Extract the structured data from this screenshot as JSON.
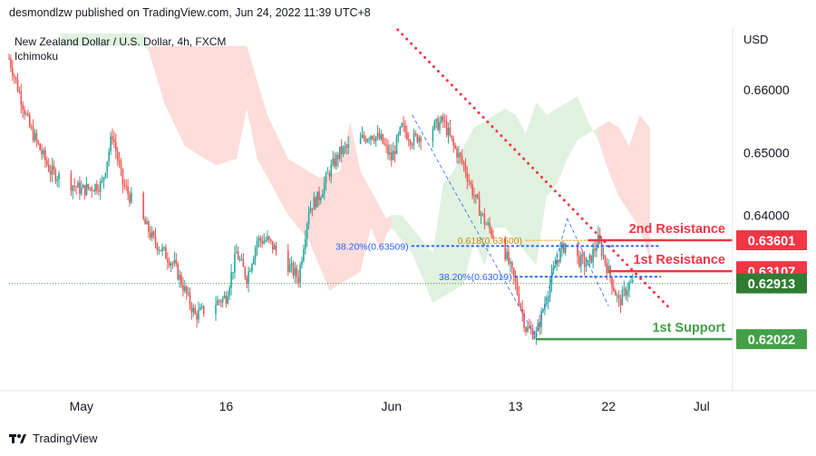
{
  "header": {
    "publisher": "desmondlzw published on TradingView.com, Jun 24, 2022 11:39 UTC+8"
  },
  "footer": {
    "logo_text": "TradingView",
    "logo_icon": "tradingview-logo-icon"
  },
  "chart_data": {
    "type": "candlestick",
    "title": "New Zealand Dollar / U.S. Dollar, 4h, FXCM",
    "indicator": "Ichimoku",
    "currency": "USD",
    "ylim": [
      0.612,
      0.67
    ],
    "y_ticks": [
      "0.66000",
      "0.65000",
      "0.64000"
    ],
    "x_ticks": [
      "May",
      "16",
      "Jun",
      "13",
      "22",
      "Jul"
    ],
    "x_tick_dates": [
      "2022-05-02",
      "2022-05-16",
      "2022-06-01",
      "2022-06-13",
      "2022-06-22",
      "2022-07-01"
    ],
    "x_start": "2022-04-25",
    "x_end": "2022-07-04",
    "colors": {
      "up": "#26a69a",
      "down": "#ef5350",
      "trendline": "#f23645",
      "fib_line": "#2962ff",
      "fib_label": "#2962ff",
      "fib_618_label": "#ff9800",
      "resistance": "#f23645",
      "support": "#43a047",
      "price_tag": "#2e7d32",
      "cloud_bear": "#f8b3ad",
      "cloud_bull": "#a5d6a7"
    },
    "close_path": [
      [
        "2022-04-25",
        0.665
      ],
      [
        "2022-04-27",
        0.654
      ],
      [
        "2022-04-29",
        0.647
      ],
      [
        "2022-05-02",
        0.644
      ],
      [
        "2022-05-04",
        0.645
      ],
      [
        "2022-05-05",
        0.653
      ],
      [
        "2022-05-06",
        0.645
      ],
      [
        "2022-05-09",
        0.636
      ],
      [
        "2022-05-11",
        0.632
      ],
      [
        "2022-05-12",
        0.628
      ],
      [
        "2022-05-13",
        0.624
      ],
      [
        "2022-05-16",
        0.627
      ],
      [
        "2022-05-17",
        0.634
      ],
      [
        "2022-05-18",
        0.63
      ],
      [
        "2022-05-19",
        0.636
      ],
      [
        "2022-05-20",
        0.636
      ],
      [
        "2022-05-23",
        0.63
      ],
      [
        "2022-05-24",
        0.641
      ],
      [
        "2022-05-25",
        0.643
      ],
      [
        "2022-05-26",
        0.647
      ],
      [
        "2022-05-27",
        0.65
      ],
      [
        "2022-05-30",
        0.653
      ],
      [
        "2022-05-31",
        0.652
      ],
      [
        "2022-06-01",
        0.649
      ],
      [
        "2022-06-02",
        0.654
      ],
      [
        "2022-06-03",
        0.652
      ],
      [
        "2022-06-06",
        0.655
      ],
      [
        "2022-06-07",
        0.651
      ],
      [
        "2022-06-08",
        0.648
      ],
      [
        "2022-06-09",
        0.643
      ],
      [
        "2022-06-10",
        0.639
      ],
      [
        "2022-06-12",
        0.634
      ],
      [
        "2022-06-13",
        0.629
      ],
      [
        "2022-06-14",
        0.622
      ],
      [
        "2022-06-15",
        0.621
      ],
      [
        "2022-06-16",
        0.627
      ],
      [
        "2022-06-17",
        0.633
      ],
      [
        "2022-06-18",
        0.636
      ],
      [
        "2022-06-19",
        0.633
      ],
      [
        "2022-06-20",
        0.632
      ],
      [
        "2022-06-21",
        0.636
      ],
      [
        "2022-06-22",
        0.631
      ],
      [
        "2022-06-23",
        0.626
      ],
      [
        "2022-06-24",
        0.629
      ]
    ],
    "trendline": {
      "from": [
        "2022-05-30",
        0.674
      ],
      "to": [
        "2022-06-28",
        0.625
      ]
    },
    "levels": [
      {
        "name": "2nd Resistance",
        "value": 0.63601,
        "tag": "0.63601",
        "kind": "resistance",
        "from": "2022-06-20"
      },
      {
        "name": "1st Resistance",
        "value": 0.63107,
        "tag": "0.63107",
        "kind": "resistance",
        "from": "2022-06-22"
      },
      {
        "name": "1st Support",
        "value": 0.62022,
        "tag": "0.62022",
        "kind": "support",
        "from": "2022-06-15"
      }
    ],
    "current_price": {
      "value": 0.62913,
      "tag": "0.62913"
    },
    "fib_levels": [
      {
        "label": "38.20%(0.63509)",
        "value": 0.63509,
        "from": "2022-06-03",
        "to": "2022-06-27"
      },
      {
        "label": "38.20%(0.63019)",
        "value": 0.63019,
        "from": "2022-06-13",
        "to": "2022-06-27"
      },
      {
        "label": "0.618(0.63600)",
        "value": 0.636,
        "from": "2022-06-14",
        "to": "2022-06-20",
        "label_color": "orange"
      }
    ]
  }
}
